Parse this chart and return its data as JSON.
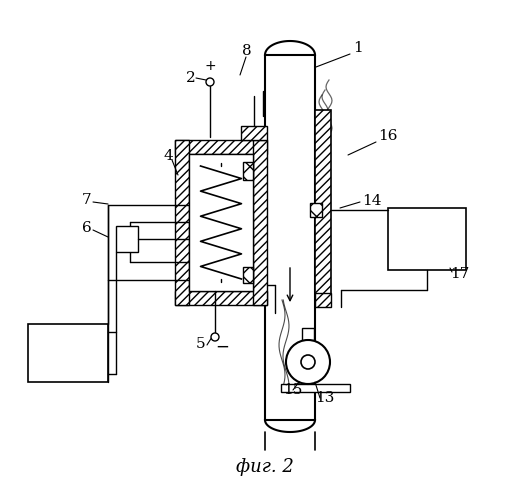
{
  "title": "фиг. 2",
  "background": "#ffffff",
  "fig_width": 5.3,
  "fig_height": 5.0,
  "dpi": 100
}
